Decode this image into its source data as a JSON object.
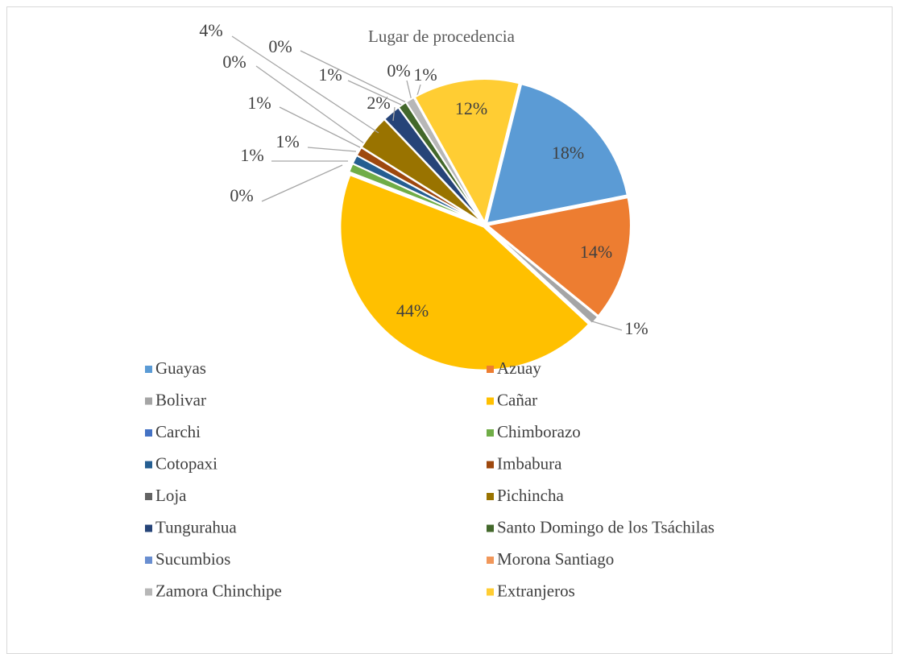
{
  "chart_data": {
    "type": "pie",
    "title": "Lugar de procedencia",
    "categories": [
      "Guayas",
      "Azuay",
      "Bolivar",
      "Cañar",
      "Carchi",
      "Chimborazo",
      "Cotopaxi",
      "Imbabura",
      "Loja",
      "Pichincha",
      "Tungurahua",
      "Santo Domingo de los Tsáchilas",
      "Sucumbios",
      "Morona Santiago",
      "Zamora Chinchipe",
      "Extranjeros"
    ],
    "values": [
      18,
      14,
      1,
      44,
      0,
      1,
      1,
      1,
      0,
      4,
      2,
      1,
      0,
      0,
      1,
      12
    ],
    "value_labels": [
      "18%",
      "14%",
      "1%",
      "44%",
      "0%",
      "1%",
      "1%",
      "1%",
      "0%",
      "4%",
      "2%",
      "1%",
      "0%",
      "0%",
      "1%",
      "12%"
    ],
    "colors": [
      "#5b9bd5",
      "#ed7d31",
      "#a5a5a5",
      "#ffc000",
      "#4472c4",
      "#70ad47",
      "#255e91",
      "#9e480e",
      "#636363",
      "#997300",
      "#264478",
      "#43682b",
      "#698ed0",
      "#f1975a",
      "#b7b7b7",
      "#ffcd33"
    ],
    "legend": "bottom"
  }
}
